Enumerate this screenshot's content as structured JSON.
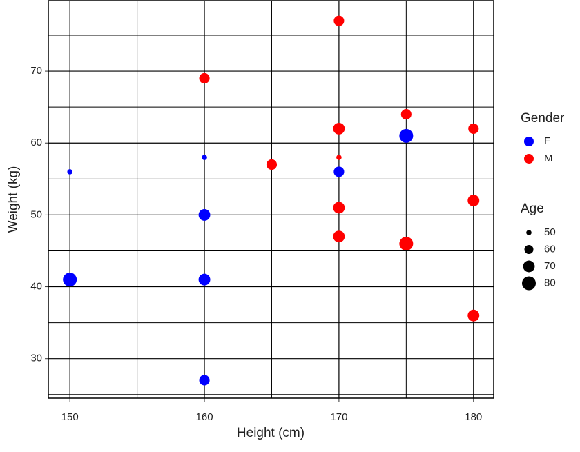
{
  "chart_data": {
    "type": "scatter",
    "x_label": "Height (cm)",
    "y_label": "Weight (kg)",
    "xlim": [
      148.4,
      181.5
    ],
    "ylim": [
      24.5,
      79.8
    ],
    "xticks": [
      150,
      160,
      170,
      180
    ],
    "yticks": [
      30,
      40,
      50,
      60,
      70
    ],
    "minor_xticks": [
      155,
      165,
      175
    ],
    "minor_yticks": [
      25,
      35,
      45,
      55,
      65,
      75
    ],
    "grid": true,
    "color_legend_title": "Gender",
    "size_legend_title": "Age",
    "size_legend": [
      50,
      60,
      70,
      80
    ],
    "series": [
      {
        "name": "F",
        "color": "#0000ff",
        "x": [
          150,
          150,
          160,
          160,
          160,
          160,
          170,
          175
        ],
        "values": [
          56,
          41,
          58,
          50,
          41,
          27,
          56,
          61
        ],
        "size": [
          50,
          80,
          50,
          70,
          70,
          65,
          65,
          80
        ]
      },
      {
        "name": "M",
        "color": "#ff0000",
        "x": [
          160,
          165,
          170,
          170,
          170,
          170,
          170,
          175,
          175,
          180,
          180,
          180
        ],
        "values": [
          69,
          57,
          77,
          62,
          58,
          51,
          47,
          64,
          46,
          62,
          52,
          36
        ],
        "size": [
          65,
          65,
          65,
          70,
          50,
          70,
          70,
          65,
          80,
          65,
          70,
          70
        ]
      }
    ]
  }
}
